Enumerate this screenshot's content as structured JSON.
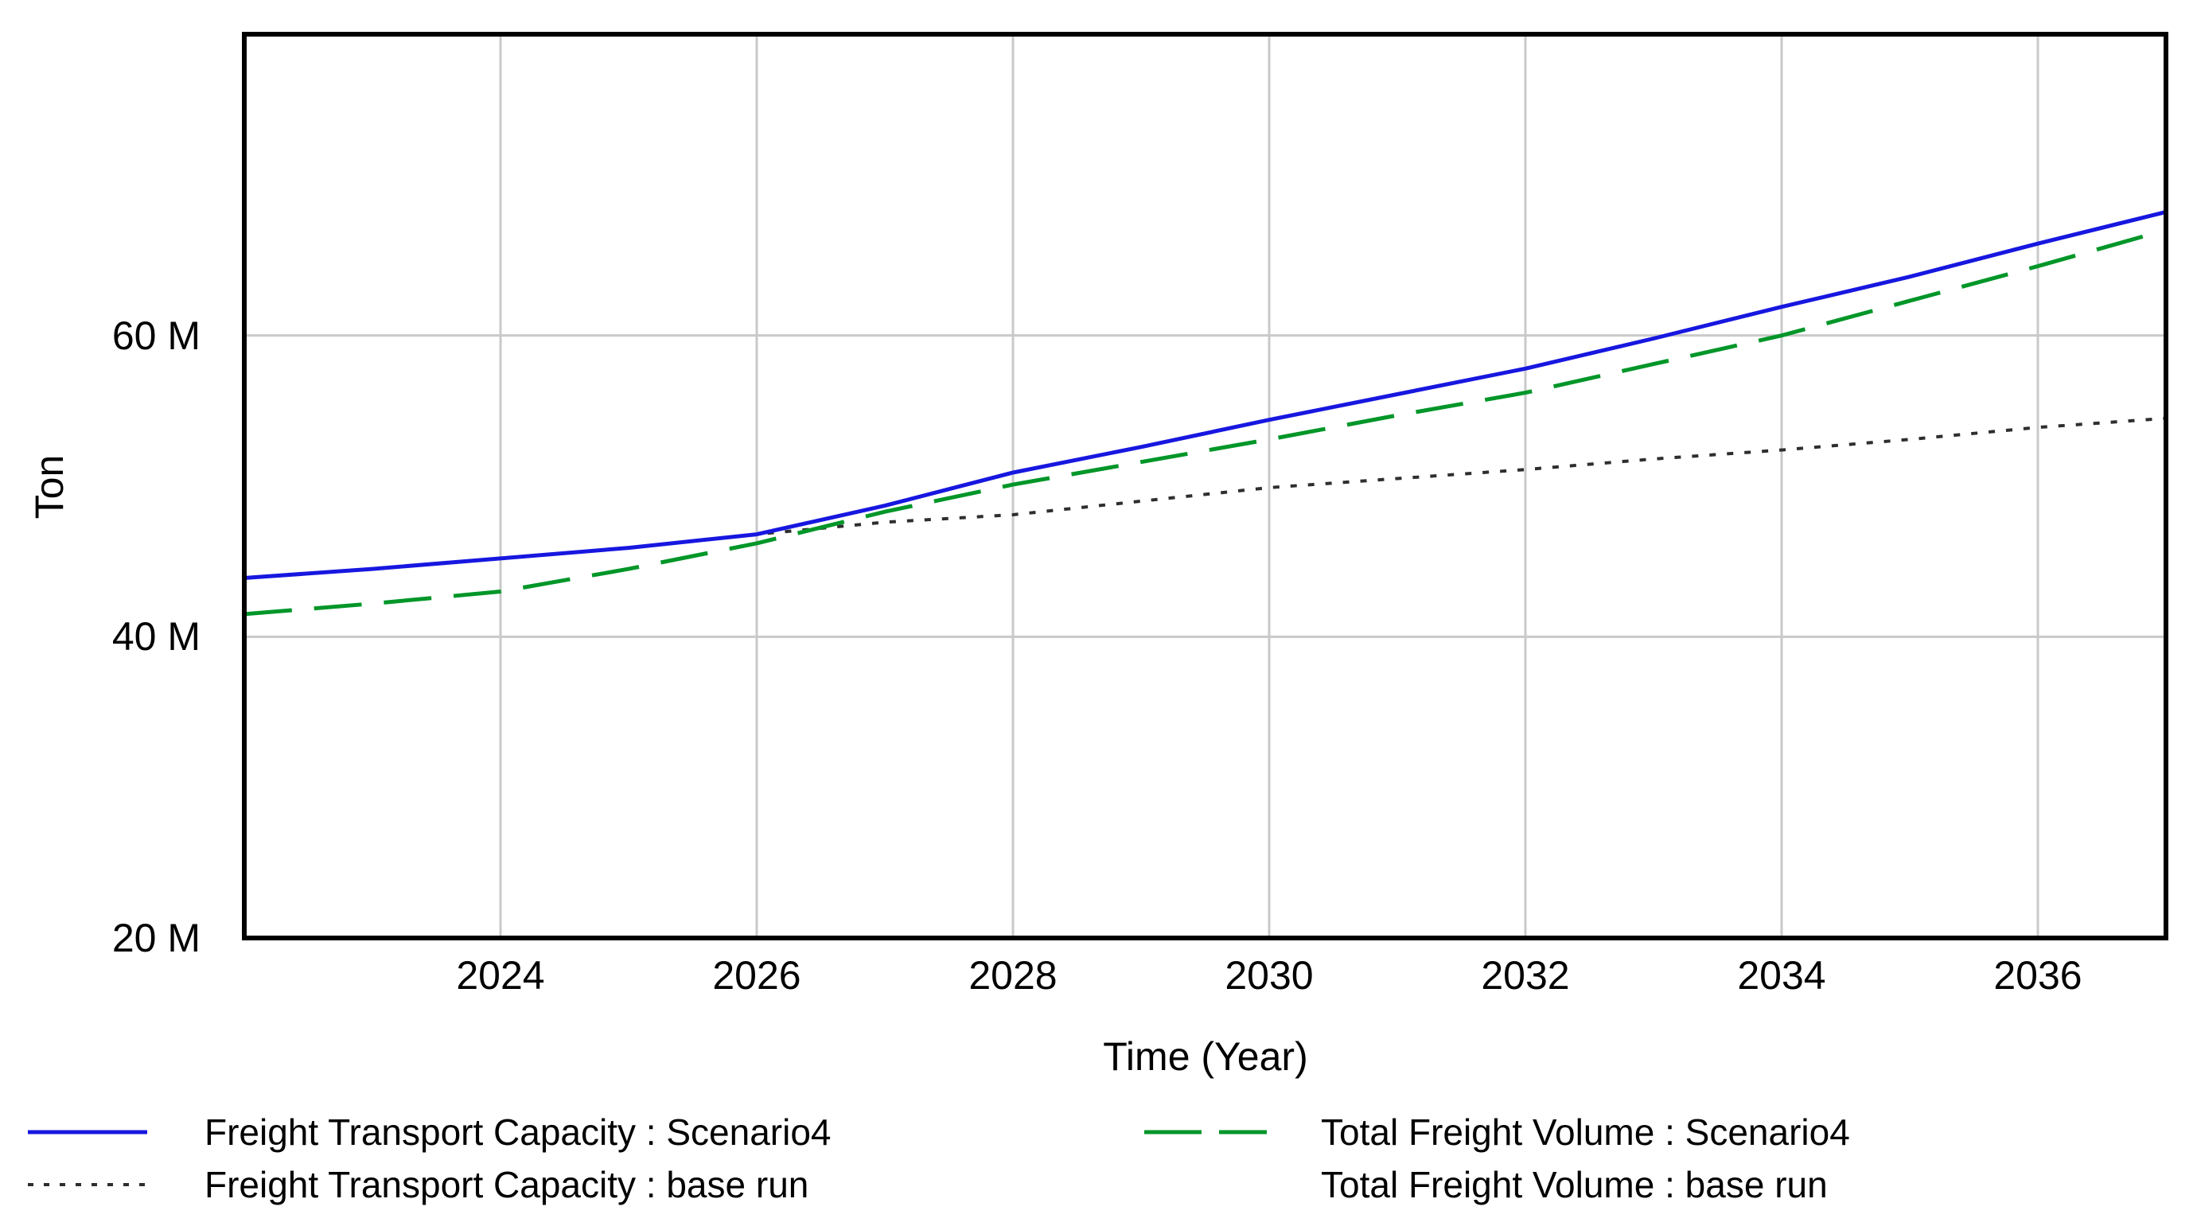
{
  "chart_data": {
    "type": "line",
    "title": "",
    "xlabel": "Time (Year)",
    "ylabel": "Ton",
    "unit": "Ton",
    "x_range": [
      2022,
      2037
    ],
    "y_range": [
      20000000,
      80000000
    ],
    "grid": true,
    "grid_color": "#c9c9c9",
    "frame_color": "#000000",
    "x_gridline_years": [
      2024,
      2026,
      2028,
      2030,
      2032,
      2034,
      2036
    ],
    "y_gridline_values_M": [
      40,
      60
    ],
    "x_ticks": [
      {
        "value": 2024,
        "label": "2024"
      },
      {
        "value": 2026,
        "label": "2026"
      },
      {
        "value": 2028,
        "label": "2028"
      },
      {
        "value": 2030,
        "label": "2030"
      },
      {
        "value": 2032,
        "label": "2032"
      },
      {
        "value": 2034,
        "label": "2034"
      },
      {
        "value": 2036,
        "label": "2036"
      }
    ],
    "y_ticks": [
      {
        "value": 20,
        "label": "20 M"
      },
      {
        "value": 40,
        "label": "40 M"
      },
      {
        "value": 60,
        "label": "60 M"
      }
    ],
    "x_years": [
      2022,
      2023,
      2024,
      2025,
      2026,
      2027,
      2028,
      2029,
      2030,
      2031,
      2032,
      2033,
      2034,
      2035,
      2036,
      2037
    ],
    "series": [
      {
        "name": "Freight Transport Capacity : Scenario4",
        "color": "#1717e0",
        "style": "solid",
        "values_M": [
          43.9,
          44.5,
          45.2,
          45.9,
          46.8,
          48.7,
          50.9,
          52.6,
          54.4,
          56.1,
          57.8,
          59.8,
          61.9,
          63.9,
          66.1,
          68.2
        ]
      },
      {
        "name": "Total Freight Volume : Scenario4",
        "color": "#009628",
        "style": "dashed",
        "values_M": [
          41.5,
          42.2,
          43.0,
          44.5,
          46.2,
          48.3,
          50.1,
          51.6,
          53.1,
          54.7,
          56.2,
          58.1,
          60.0,
          62.3,
          64.6,
          67.0
        ]
      },
      {
        "name": "Freight Transport Capacity : base run",
        "color": "#2e2e2e",
        "style": "dotted",
        "values_M": [
          43.9,
          44.5,
          45.2,
          45.9,
          46.8,
          47.6,
          48.1,
          49.0,
          49.9,
          50.5,
          51.1,
          51.8,
          52.4,
          53.1,
          53.9,
          54.5
        ]
      },
      {
        "name": "Total Freight Volume : base run",
        "color": null,
        "style": "none",
        "values_M": []
      }
    ],
    "legend_position": "bottom-two-columns"
  },
  "axis": {
    "x_title": "Time (Year)",
    "y_title": "Ton"
  },
  "legend": {
    "entries": [
      {
        "label": "Freight Transport Capacity : Scenario4",
        "series_index": 0
      },
      {
        "label": "Freight Transport Capacity : base run",
        "series_index": 2
      },
      {
        "label": "Total Freight Volume : Scenario4",
        "series_index": 1
      },
      {
        "label": "Total Freight Volume : base run",
        "series_index": 3
      }
    ]
  }
}
